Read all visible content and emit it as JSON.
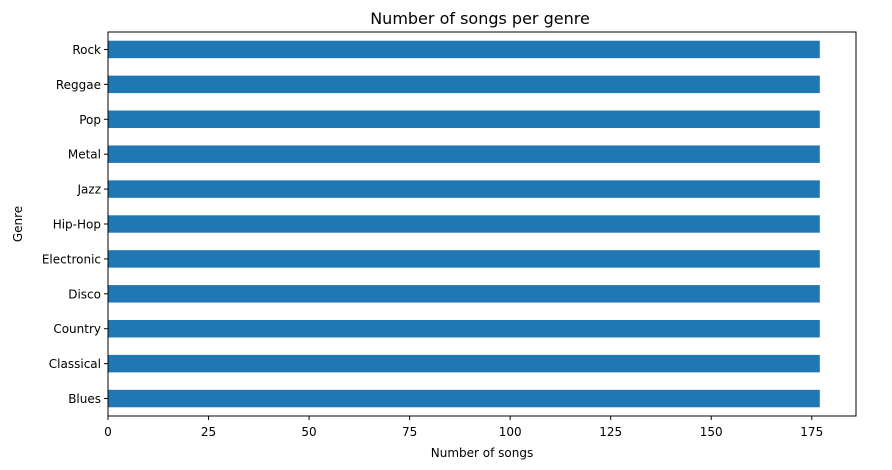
{
  "chart_data": {
    "type": "bar",
    "orientation": "horizontal",
    "title": "Number of songs per genre",
    "xlabel": "Number of songs",
    "ylabel": "Genre",
    "categories": [
      "Blues",
      "Classical",
      "Country",
      "Disco",
      "Electronic",
      "Hip-Hop",
      "Jazz",
      "Metal",
      "Pop",
      "Reggae",
      "Rock"
    ],
    "values": [
      177,
      177,
      177,
      177,
      177,
      177,
      177,
      177,
      177,
      177,
      177
    ],
    "xlim": [
      0,
      186
    ],
    "xticks": [
      0,
      25,
      50,
      75,
      100,
      125,
      150,
      175
    ],
    "grid": false,
    "legend": "none",
    "bar_color": "#1f77b4"
  }
}
